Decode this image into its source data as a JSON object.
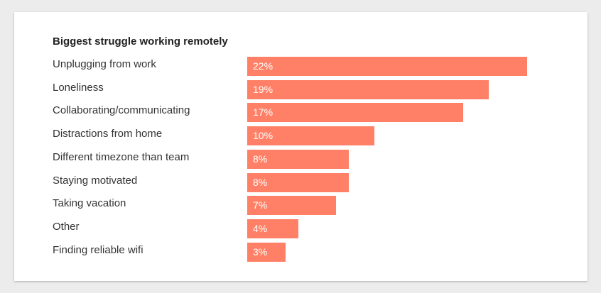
{
  "chart_data": {
    "type": "bar",
    "orientation": "horizontal",
    "title": "Biggest struggle working remotely",
    "categories": [
      "Unplugging from work",
      "Loneliness",
      "Collaborating/communicating",
      "Distractions from home",
      "Different timezone than team",
      "Staying motivated",
      "Taking vacation",
      "Other",
      "Finding reliable wifi"
    ],
    "values": [
      22,
      19,
      17,
      10,
      8,
      8,
      7,
      4,
      3
    ],
    "value_labels": [
      "22%",
      "19%",
      "17%",
      "10%",
      "8%",
      "8%",
      "7%",
      "4%",
      "3%"
    ],
    "unit": "%",
    "bar_color": "#ff8066",
    "grid": false,
    "legend": "none"
  }
}
